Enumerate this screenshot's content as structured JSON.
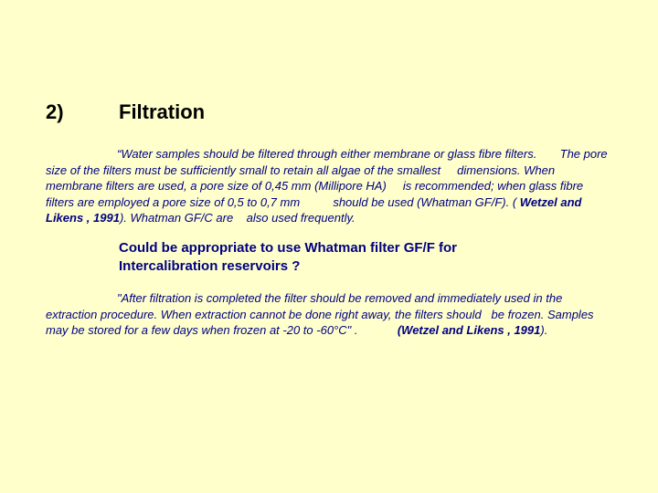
{
  "heading": {
    "number": "2)",
    "title": "Filtration"
  },
  "para1": {
    "lead_quote": "“",
    "t1": "Water samples should be filtered through either membrane or glass fibre filters.",
    "t2": "The pore size of the filters must be sufficiently small to retain all algae of the smallest",
    "t3": "dimensions. When membrane filters are used, a pore size of 0,45 mm (Millipore HA)",
    "t4": "is recommended; when glass fibre filters are employed a pore size of 0,5 to 0,7 mm",
    "t5": "should be used (Whatman GF/F). (",
    "ref": "Wetzel and Likens , 1991",
    "t6": "). Whatman GF/C are",
    "t7": "also used frequently."
  },
  "question": {
    "line1a": "Could be appropriate to use ",
    "line1b": "Whatman filter GF/F",
    "line1c": " for",
    "line2": "Intercalibration reservoirs ?"
  },
  "para2": {
    "t1": "\"After filtration is completed the filter should be removed and immediately used in the extraction procedure. When extraction cannot be done right away, the filters should",
    "t2": "be frozen. Samples may be stored for a few days when frozen at -20 to -60°C\" .",
    "ref": "(Wetzel and Likens , 1991",
    "t3": ")."
  }
}
